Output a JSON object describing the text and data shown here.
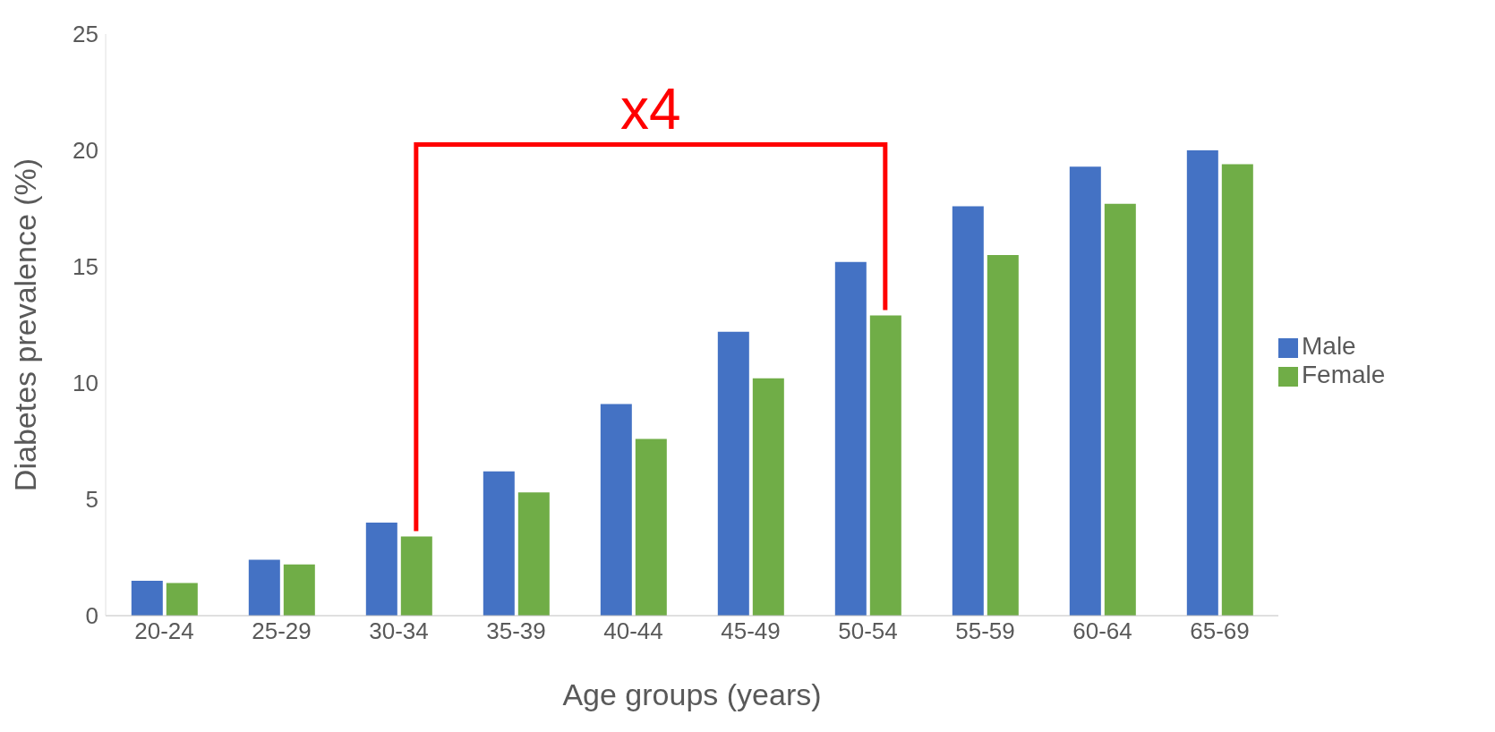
{
  "chart_data": {
    "type": "bar",
    "xlabel": "Age groups (years)",
    "ylabel": "Diabetes prevalence (%)",
    "categories": [
      "20-24",
      "25-29",
      "30-34",
      "35-39",
      "40-44",
      "45-49",
      "50-54",
      "55-59",
      "60-64",
      "65-69"
    ],
    "series": [
      {
        "name": "Male",
        "color": "#4472c4",
        "values": [
          1.5,
          2.4,
          4.0,
          6.2,
          9.1,
          12.2,
          15.2,
          17.6,
          19.3,
          20.0
        ]
      },
      {
        "name": "Female",
        "color": "#70ad47",
        "values": [
          1.4,
          2.2,
          3.4,
          5.3,
          7.6,
          10.2,
          12.9,
          15.5,
          17.7,
          19.4
        ]
      }
    ],
    "ylim": [
      0,
      25
    ],
    "yticks": [
      0,
      5,
      10,
      15,
      20,
      25
    ],
    "grid": false,
    "legend": "right",
    "annotations": [
      "x4"
    ]
  }
}
